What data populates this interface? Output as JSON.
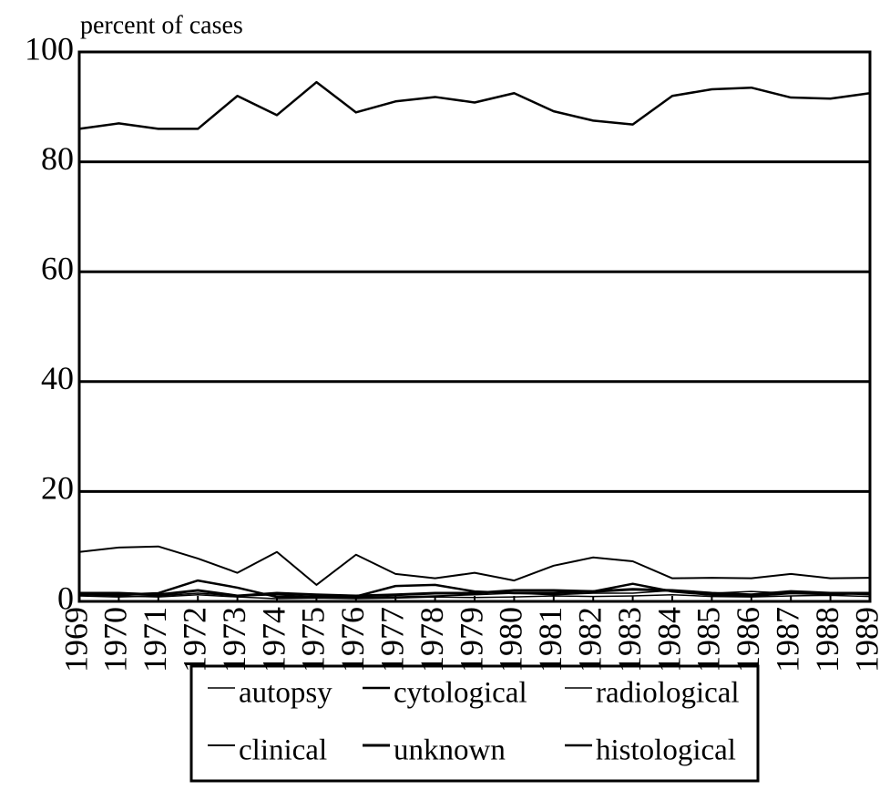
{
  "chart_data": {
    "type": "line",
    "y_label": "percent  of cases",
    "x": [
      1969,
      1970,
      1971,
      1972,
      1973,
      1974,
      1975,
      1976,
      1977,
      1978,
      1979,
      1980,
      1981,
      1982,
      1983,
      1984,
      1985,
      1986,
      1987,
      1988,
      1989
    ],
    "xlim": [
      1969,
      1989
    ],
    "xticks": [
      1969,
      1970,
      1971,
      1972,
      1973,
      1974,
      1975,
      1976,
      1977,
      1978,
      1979,
      1980,
      1981,
      1982,
      1983,
      1984,
      1985,
      1986,
      1987,
      1988,
      1989
    ],
    "ylim": [
      0,
      100
    ],
    "yticks": [
      0,
      20,
      40,
      60,
      80,
      100
    ],
    "grid": true,
    "legend": "bottom",
    "series": [
      {
        "name": "autopsy",
        "color": "#000000",
        "values": [
          1.2,
          1.0,
          0.8,
          1.2,
          0.8,
          0.5,
          0.6,
          0.5,
          0.6,
          0.8,
          0.7,
          0.8,
          1.0,
          0.9,
          1.0,
          1.2,
          0.9,
          0.8,
          1.0,
          1.1,
          0.9
        ]
      },
      {
        "name": "cytological",
        "color": "#000000",
        "values": [
          1.5,
          1.2,
          1.5,
          3.8,
          2.5,
          0.8,
          0.8,
          0.9,
          2.8,
          3.0,
          1.8,
          1.5,
          1.5,
          1.8,
          3.2,
          1.8,
          1.2,
          1.0,
          1.5,
          1.3,
          1.5
        ]
      },
      {
        "name": "radiological",
        "color": "#000000",
        "values": [
          1.0,
          0.8,
          1.0,
          1.5,
          1.0,
          1.2,
          0.8,
          0.7,
          0.8,
          1.0,
          1.2,
          1.5,
          1.2,
          1.5,
          1.5,
          2.0,
          1.5,
          1.8,
          1.5,
          1.5,
          1.2
        ]
      },
      {
        "name": "clinical",
        "color": "#000000",
        "values": [
          9.0,
          9.8,
          10.0,
          7.8,
          5.2,
          9.0,
          3.0,
          8.5,
          5.0,
          4.2,
          5.2,
          3.8,
          6.5,
          8.0,
          7.3,
          4.2,
          4.3,
          4.2,
          5.0,
          4.2,
          4.3
        ]
      },
      {
        "name": "unknown",
        "color": "#000000",
        "values": [
          1.5,
          1.5,
          1.2,
          2.0,
          1.0,
          1.5,
          1.2,
          1.0,
          1.2,
          1.5,
          1.5,
          2.0,
          2.0,
          1.8,
          2.2,
          2.0,
          1.5,
          1.2,
          1.8,
          1.5,
          1.5
        ]
      },
      {
        "name": "histological",
        "color": "#000000",
        "values": [
          86.0,
          87.0,
          86.0,
          86.0,
          92.0,
          88.5,
          94.5,
          89.0,
          91.0,
          91.8,
          90.8,
          92.5,
          89.2,
          87.5,
          86.8,
          92.0,
          93.2,
          93.5,
          91.7,
          91.5,
          92.5
        ]
      }
    ]
  }
}
